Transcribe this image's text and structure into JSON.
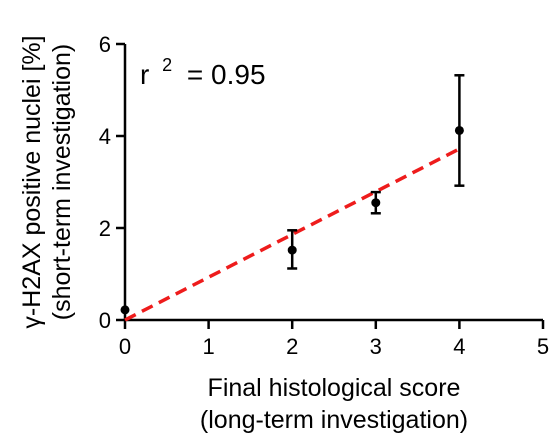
{
  "chart_data": {
    "type": "scatter",
    "annotation": {
      "r": "r",
      "sup": "2",
      "value": "= 0.95"
    },
    "xlabel": {
      "line1": "Final histological score",
      "line2": "(long-term investigation)"
    },
    "ylabel": {
      "line1": "γ-H2AX positive nuclei [%]",
      "line2": "(short-term investigation)"
    },
    "xlim": [
      0,
      5
    ],
    "ylim": [
      0,
      6
    ],
    "x_ticks": [
      "0",
      "1",
      "2",
      "3",
      "4",
      "5"
    ],
    "y_ticks": [
      "0",
      "2",
      "4",
      "6"
    ],
    "grid": false,
    "points": [
      {
        "x": 0,
        "y": 0.22,
        "err_low": null,
        "err_high": null
      },
      {
        "x": 2,
        "y": 1.52,
        "err_low": 1.12,
        "err_high": 1.95
      },
      {
        "x": 3,
        "y": 2.55,
        "err_low": 2.32,
        "err_high": 2.78
      },
      {
        "x": 4,
        "y": 4.12,
        "err_low": 2.92,
        "err_high": 5.32
      }
    ],
    "regression": {
      "style": "dashed",
      "color": "#ee1c1c",
      "x": [
        0,
        4
      ],
      "y": [
        0,
        3.72
      ]
    },
    "colors": {
      "points": "#000000",
      "axes": "#000000"
    }
  }
}
